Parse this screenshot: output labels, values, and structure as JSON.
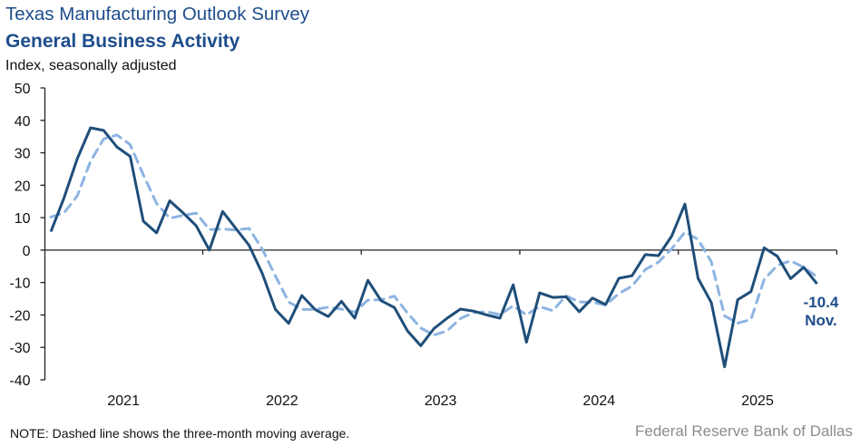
{
  "chart_data": {
    "type": "line",
    "title": "Texas Manufacturing Outlook Survey",
    "subtitle": "General Business Activity",
    "ylabel": "Index, seasonally adjusted",
    "xlabel": "",
    "ylim": [
      -40,
      50
    ],
    "yticks": [
      50,
      40,
      30,
      20,
      10,
      0,
      -10,
      -20,
      -30,
      -40
    ],
    "ytick_labels": [
      "50",
      "40",
      "30",
      "20",
      "10",
      "0",
      "-10",
      "-20",
      "-30",
      "-40"
    ],
    "x_start": "2021-01",
    "x_end": "2025-11",
    "frequency": "monthly",
    "year_labels": [
      "2021",
      "2022",
      "2023",
      "2024",
      "2025"
    ],
    "grid": false,
    "legend": null,
    "series": [
      {
        "name": "General Business Activity",
        "style": "solid",
        "color": "#1F4E79",
        "values": [
          5.7,
          16.2,
          28.2,
          37.7,
          36.9,
          31.8,
          28.9,
          8.9,
          5.3,
          15.2,
          11.5,
          7.5,
          0.0,
          11.9,
          6.7,
          1.5,
          -7.2,
          -18.3,
          -22.6,
          -14.0,
          -18.3,
          -20.5,
          -15.8,
          -21.0,
          -9.3,
          -15.6,
          -17.7,
          -24.9,
          -29.5,
          -24.2,
          -21.0,
          -18.2,
          -18.8,
          -20.0,
          -21.0,
          -10.7,
          -28.4,
          -13.2,
          -14.6,
          -14.4,
          -19.0,
          -14.8,
          -16.8,
          -8.7,
          -7.9,
          -1.4,
          -1.7,
          4.3,
          14.2,
          -8.7,
          -16.2,
          -36.0,
          -15.3,
          -12.8,
          0.7,
          -1.9,
          -8.8,
          -5.3,
          -10.4
        ]
      },
      {
        "name": "Three-month moving average",
        "style": "dashed",
        "color": "#8DB4E2",
        "values": [
          10.2,
          11.5,
          16.7,
          27.4,
          34.3,
          35.5,
          32.5,
          23.2,
          14.4,
          9.8,
          10.7,
          11.4,
          6.3,
          6.5,
          6.2,
          6.7,
          0.3,
          -8.0,
          -16.0,
          -18.3,
          -18.3,
          -17.6,
          -18.2,
          -19.1,
          -15.4,
          -15.3,
          -14.2,
          -19.4,
          -24.0,
          -26.2,
          -24.9,
          -21.1,
          -19.3,
          -19.0,
          -19.9,
          -17.2,
          -20.0,
          -17.4,
          -18.7,
          -14.1,
          -16.0,
          -16.1,
          -16.9,
          -13.4,
          -11.1,
          -6.0,
          -3.7,
          0.4,
          5.6,
          3.3,
          -3.6,
          -20.3,
          -22.5,
          -21.4,
          -9.1,
          -4.7,
          -3.3,
          -5.3,
          -8.2
        ]
      }
    ],
    "annotations": [
      {
        "text": "-10.4",
        "series": "General Business Activity",
        "point": "2025-11"
      },
      {
        "text": "Nov.",
        "series": "General Business Activity",
        "point": "2025-11"
      }
    ]
  },
  "footer": {
    "note": "NOTE: Dashed line shows the three-month  moving average.",
    "source": "Federal Reserve Bank of Dallas"
  }
}
